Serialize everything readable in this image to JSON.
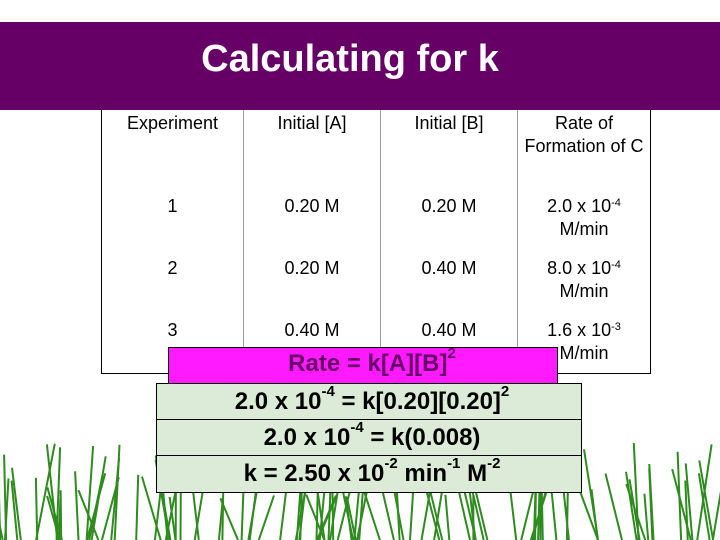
{
  "slide": {
    "title": "Calculating for k"
  },
  "table": {
    "headers": [
      "Experiment",
      "Initial [A]",
      "Initial [B]",
      "Rate of Formation of C"
    ],
    "rows": [
      {
        "experiment": "1",
        "a": "0.20 M",
        "b": "0.20 M",
        "rate_mantissa": "2.0 x 10",
        "rate_exp": "-4",
        "rate_unit": "M/min"
      },
      {
        "experiment": "2",
        "a": "0.20 M",
        "b": "0.40 M",
        "rate_mantissa": "8.0 x 10",
        "rate_exp": "-4",
        "rate_unit": "M/min"
      },
      {
        "experiment": "3",
        "a": "0.40 M",
        "b": "0.40 M",
        "rate_mantissa": "1.6 x 10",
        "rate_exp": "-3",
        "rate_unit": "M/min"
      }
    ]
  },
  "equations": {
    "line1": {
      "text": "Rate = k[A][B]",
      "exp": "2"
    },
    "line2": {
      "a": "2.0 x 10",
      "a_exp": "-4",
      "b": " = k[0.20][0.20]",
      "b_exp": "2"
    },
    "line3": {
      "a": "2.0 x 10",
      "a_exp": "-4",
      "b": " = k(0.008)"
    },
    "line4": {
      "a": "k = 2.50 x 10",
      "a_exp": "-2",
      "b": " min",
      "b_exp": "-1",
      "c": " M",
      "c_exp": "-2"
    }
  },
  "colors": {
    "title_bg": "#660066",
    "highlight_magenta": "#ff1aff",
    "box_green": "#dcebd7",
    "grass": "#2e8b1e"
  }
}
